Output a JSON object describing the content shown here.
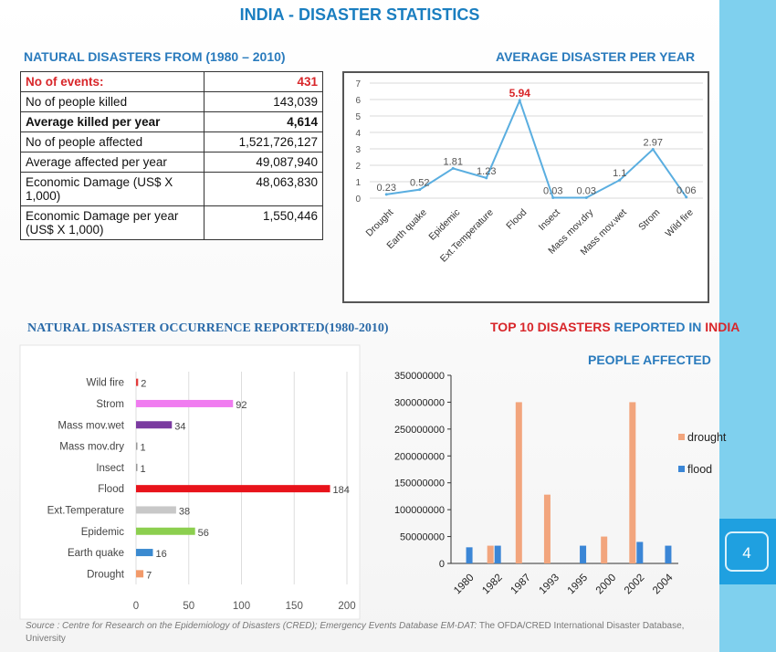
{
  "title": "INDIA - DISASTER STATISTICS",
  "page_number": "4",
  "stats_table": {
    "heading": "NATURAL DISASTERS FROM (1980 – 2010)",
    "rows": [
      {
        "label": "No of events:",
        "value": "431"
      },
      {
        "label": "No of people killed",
        "value": "143,039"
      },
      {
        "label": "Average killed per year",
        "value": "4,614"
      },
      {
        "label": "No of people affected",
        "value": "1,521,726,127"
      },
      {
        "label": "Average affected per year",
        "value": "49,087,940"
      },
      {
        "label": "Economic Damage (US$ X 1,000)",
        "value": "48,063,830"
      },
      {
        "label": "Economic Damage per year (US$ X 1,000)",
        "value": "1,550,446"
      }
    ]
  },
  "source": {
    "italic": "Source : Centre for Research on the Epidemiology of Disasters (CRED); Emergency Events Database EM-DAT:",
    "rest": " The OFDA/CRED International Disaster Database, University"
  },
  "colors": {
    "title": "#1a7ec0",
    "accent_red": "#d8262a",
    "line": "#5aaee0",
    "drought": "#f2a57d",
    "flood": "#3b86d6"
  },
  "chart_data": [
    {
      "type": "line",
      "title": "AVERAGE DISASTER PER YEAR",
      "categories": [
        "Drought",
        "Earth quake",
        "Epidemic",
        "Ext.Temperature",
        "Flood",
        "Insect",
        "Mass mov.dry",
        "Mass mov.wet",
        "Strom",
        "Wild fire"
      ],
      "values": [
        0.23,
        0.52,
        1.81,
        1.23,
        5.94,
        0.03,
        0.03,
        1.1,
        2.97,
        0.06
      ],
      "labels": [
        "0.23",
        "0.52",
        "1.81",
        "1.23",
        "5.94",
        "0.03",
        "0.03",
        "1.1",
        "2.97",
        "0.06"
      ],
      "ylim": [
        0,
        7
      ],
      "yticks": [
        "0",
        "1",
        "2",
        "3",
        "4",
        "5",
        "6",
        "7"
      ]
    },
    {
      "type": "bar",
      "orientation": "horizontal",
      "title": "NATURAL DISASTER OCCURRENCE REPORTED(1980-2010)",
      "categories": [
        "Wild fire",
        "Strom",
        "Mass mov.wet",
        "Mass mov.dry",
        "Insect",
        "Flood",
        "Ext.Temperature",
        "Epidemic",
        "Earth quake",
        "Drought"
      ],
      "values": [
        2,
        92,
        34,
        1,
        1,
        184,
        38,
        56,
        16,
        7
      ],
      "labels": [
        "2",
        "92",
        "34",
        "1",
        "1",
        "184",
        "38",
        "56",
        "16",
        "7"
      ],
      "bar_colors": [
        "#e23b3b",
        "#f07cf0",
        "#7a3aa0",
        "#999999",
        "#999999",
        "#e8131b",
        "#c8c8c8",
        "#8ccf4f",
        "#3b8ad0",
        "#f29a6a"
      ],
      "xlim": [
        0,
        200
      ],
      "xticks": [
        "0",
        "50",
        "100",
        "150",
        "200"
      ]
    },
    {
      "type": "bar",
      "title_parts": [
        "TOP 10 DISASTERS",
        " REPORTED IN ",
        "INDIA"
      ],
      "subtitle": "PEOPLE AFFECTED",
      "categories": [
        "1980",
        "1982",
        "1987",
        "1993",
        "1995",
        "2000",
        "2002",
        "2004"
      ],
      "series": [
        {
          "name": "drought",
          "values": [
            0,
            33000000,
            300000000,
            128000000,
            0,
            50000000,
            300000000,
            0
          ]
        },
        {
          "name": "flood",
          "values": [
            30000000,
            33000000,
            0,
            0,
            33000000,
            0,
            40000000,
            33000000
          ]
        }
      ],
      "ylim": [
        0,
        350000000
      ],
      "yticks": [
        "0",
        "50000000",
        "100000000",
        "150000000",
        "200000000",
        "250000000",
        "300000000",
        "350000000"
      ]
    }
  ]
}
